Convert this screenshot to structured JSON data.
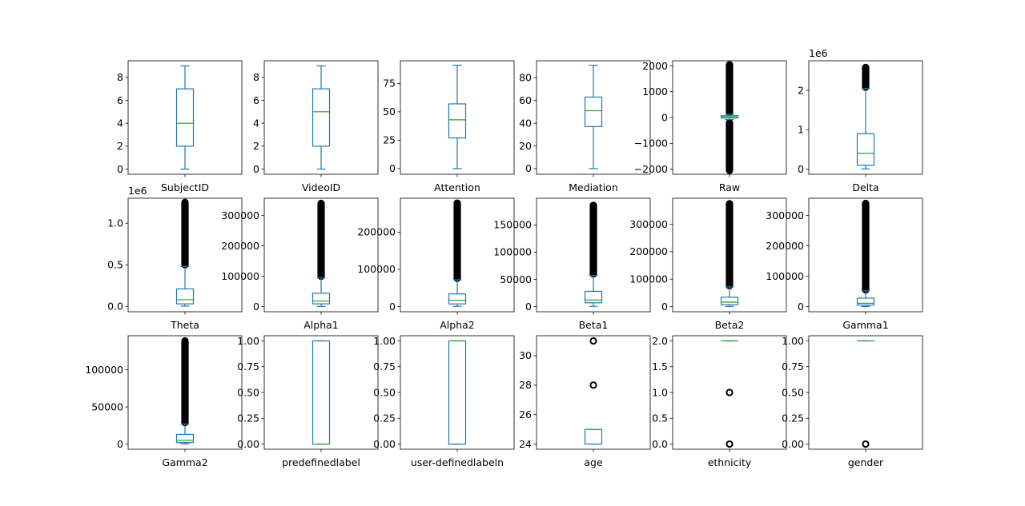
{
  "colors": {
    "box": "#1f77b4",
    "median": "#2ca02c",
    "flier": "#000000",
    "axis": "#000000"
  },
  "chart_data": [
    {
      "type": "box",
      "xlabel": "SubjectID",
      "ylim": [
        -0.45,
        9.45
      ],
      "ticks": [
        0,
        2,
        4,
        6,
        8
      ],
      "tick_labels": [
        "0",
        "2",
        "4",
        "6",
        "8"
      ],
      "offset_label": "",
      "whislo": 0,
      "q1": 2,
      "med": 4,
      "q3": 7,
      "whishi": 9,
      "fliers": []
    },
    {
      "type": "box",
      "xlabel": "VideoID",
      "ylim": [
        -0.45,
        9.45
      ],
      "ticks": [
        0,
        2,
        4,
        6,
        8
      ],
      "tick_labels": [
        "0",
        "2",
        "4",
        "6",
        "8"
      ],
      "offset_label": "",
      "whislo": 0,
      "q1": 2,
      "med": 5,
      "q3": 7,
      "whishi": 9,
      "fliers": []
    },
    {
      "type": "box",
      "xlabel": "Attention",
      "ylim": [
        -5,
        95
      ],
      "ticks": [
        0,
        25,
        50,
        75
      ],
      "tick_labels": [
        "0",
        "25",
        "50",
        "75"
      ],
      "offset_label": "",
      "whislo": 0,
      "q1": 27,
      "med": 43,
      "q3": 57,
      "whishi": 91,
      "fliers": []
    },
    {
      "type": "box",
      "xlabel": "Mediation",
      "ylim": [
        -5,
        95
      ],
      "ticks": [
        0,
        20,
        40,
        60,
        80
      ],
      "tick_labels": [
        "0",
        "20",
        "40",
        "60",
        "80"
      ],
      "offset_label": "",
      "whislo": 0,
      "q1": 37,
      "med": 51,
      "q3": 63,
      "whishi": 91,
      "fliers": []
    },
    {
      "type": "box",
      "xlabel": "Raw",
      "ylim": [
        -2200,
        2200
      ],
      "ticks": [
        -2000,
        -1000,
        0,
        1000,
        2000
      ],
      "tick_labels": [
        "−2000",
        "−1000",
        "0",
        "1000",
        "2000"
      ],
      "offset_label": "",
      "whislo": -80,
      "q1": -20,
      "med": 25,
      "q3": 70,
      "whishi": 120,
      "fliers": [],
      "flier_band": [
        [
          -2048,
          -200
        ],
        [
          200,
          2047
        ]
      ]
    },
    {
      "type": "box",
      "xlabel": "Delta",
      "ylim": [
        -0.13,
        2.75
      ],
      "ticks": [
        0,
        1,
        2
      ],
      "tick_labels": [
        "0",
        "1",
        "2"
      ],
      "offset_label": "1e6",
      "whislo": 0.005,
      "q1": 0.1,
      "med": 0.4,
      "q3": 0.9,
      "whishi": 2.05,
      "fliers": [],
      "flier_band": [
        [
          2.08,
          2.58
        ]
      ]
    },
    {
      "type": "box",
      "xlabel": "Theta",
      "ylim": [
        -0.065,
        1.3
      ],
      "ticks": [
        0,
        0.5,
        1
      ],
      "tick_labels": [
        "0.0",
        "0.5",
        "1.0"
      ],
      "offset_label": "1e6",
      "whislo": 0.003,
      "q1": 0.03,
      "med": 0.08,
      "q3": 0.21,
      "whishi": 0.48,
      "fliers": [],
      "flier_band": [
        [
          0.5,
          1.25
        ]
      ]
    },
    {
      "type": "box",
      "xlabel": "Alpha1",
      "ylim": [
        -17000,
        357000
      ],
      "ticks": [
        0,
        100000,
        200000,
        300000
      ],
      "tick_labels": [
        "0",
        "100000",
        "200000",
        "300000"
      ],
      "offset_label": "",
      "whislo": 500,
      "q1": 9000,
      "med": 18000,
      "q3": 44000,
      "whishi": 95000,
      "fliers": [],
      "flier_band": [
        [
          100000,
          340000
        ]
      ]
    },
    {
      "type": "box",
      "xlabel": "Alpha2",
      "ylim": [
        -14000,
        291000
      ],
      "ticks": [
        0,
        100000,
        200000
      ],
      "tick_labels": [
        "0",
        "100000",
        "200000"
      ],
      "offset_label": "",
      "whislo": 500,
      "q1": 7000,
      "med": 17000,
      "q3": 34000,
      "whishi": 72000,
      "fliers": [],
      "flier_band": [
        [
          76000,
          278000
        ]
      ]
    },
    {
      "type": "box",
      "xlabel": "Beta1",
      "ylim": [
        -9500,
        199000
      ],
      "ticks": [
        0,
        50000,
        100000,
        150000
      ],
      "tick_labels": [
        "0",
        "50000",
        "100000",
        "150000"
      ],
      "offset_label": "",
      "whislo": 500,
      "q1": 7000,
      "med": 12000,
      "q3": 28000,
      "whishi": 57000,
      "fliers": [],
      "flier_band": [
        [
          60000,
          186000
        ]
      ]
    },
    {
      "type": "box",
      "xlabel": "Beta2",
      "ylim": [
        -19000,
        395000
      ],
      "ticks": [
        0,
        100000,
        200000,
        300000
      ],
      "tick_labels": [
        "0",
        "100000",
        "200000",
        "300000"
      ],
      "offset_label": "",
      "whislo": 500,
      "q1": 7000,
      "med": 16000,
      "q3": 34000,
      "whishi": 72000,
      "fliers": [],
      "flier_band": [
        [
          76000,
          375000
        ]
      ]
    },
    {
      "type": "box",
      "xlabel": "Gamma1",
      "ylim": [
        -17000,
        357000
      ],
      "ticks": [
        0,
        100000,
        200000,
        300000
      ],
      "tick_labels": [
        "0",
        "100000",
        "200000",
        "300000"
      ],
      "offset_label": "",
      "whislo": 500,
      "q1": 5000,
      "med": 11000,
      "q3": 28000,
      "whishi": 52000,
      "fliers": [],
      "flier_band": [
        [
          55000,
          340000
        ]
      ]
    },
    {
      "type": "box",
      "xlabel": "Gamma2",
      "ylim": [
        -7000,
        146000
      ],
      "ticks": [
        0,
        50000,
        100000
      ],
      "tick_labels": [
        "0",
        "50000",
        "100000"
      ],
      "offset_label": "",
      "whislo": 300,
      "q1": 2000,
      "med": 5000,
      "q3": 13000,
      "whishi": 27000,
      "fliers": [],
      "flier_band": [
        [
          29000,
          139000
        ]
      ]
    },
    {
      "type": "box",
      "xlabel": "predefinedlabel",
      "ylim": [
        -0.05,
        1.05
      ],
      "ticks": [
        0,
        0.25,
        0.5,
        0.75,
        1
      ],
      "tick_labels": [
        "0.00",
        "0.25",
        "0.50",
        "0.75",
        "1.00"
      ],
      "offset_label": "",
      "whislo": 0,
      "q1": 0,
      "med": 0,
      "q3": 1,
      "whishi": 1,
      "fliers": []
    },
    {
      "type": "box",
      "xlabel": "user-definedlabeln",
      "ylim": [
        -0.05,
        1.05
      ],
      "ticks": [
        0,
        0.25,
        0.5,
        0.75,
        1
      ],
      "tick_labels": [
        "0.00",
        "0.25",
        "0.50",
        "0.75",
        "1.00"
      ],
      "offset_label": "",
      "whislo": 0,
      "q1": 0,
      "med": 1,
      "q3": 1,
      "whishi": 1,
      "fliers": []
    },
    {
      "type": "box",
      "xlabel": "age",
      "ylim": [
        23.65,
        31.35
      ],
      "ticks": [
        24,
        26,
        28,
        30
      ],
      "tick_labels": [
        "24",
        "26",
        "28",
        "30"
      ],
      "offset_label": "",
      "whislo": 24,
      "q1": 24,
      "med": 25,
      "q3": 25,
      "whishi": 25,
      "fliers": [
        28,
        31
      ]
    },
    {
      "type": "box",
      "xlabel": "ethnicity",
      "ylim": [
        -0.1,
        2.1
      ],
      "ticks": [
        0,
        0.5,
        1,
        1.5,
        2
      ],
      "tick_labels": [
        "0.0",
        "0.5",
        "1.0",
        "1.5",
        "2.0"
      ],
      "offset_label": "",
      "whislo": 2,
      "q1": 2,
      "med": 2,
      "q3": 2,
      "whishi": 2,
      "fliers": [
        0,
        1
      ]
    },
    {
      "type": "box",
      "xlabel": "gender",
      "ylim": [
        -0.05,
        1.05
      ],
      "ticks": [
        0,
        0.25,
        0.5,
        0.75,
        1
      ],
      "tick_labels": [
        "0.00",
        "0.25",
        "0.50",
        "0.75",
        "1.00"
      ],
      "offset_label": "",
      "whislo": 1,
      "q1": 1,
      "med": 1,
      "q3": 1,
      "whishi": 1,
      "fliers": [
        0
      ]
    }
  ]
}
